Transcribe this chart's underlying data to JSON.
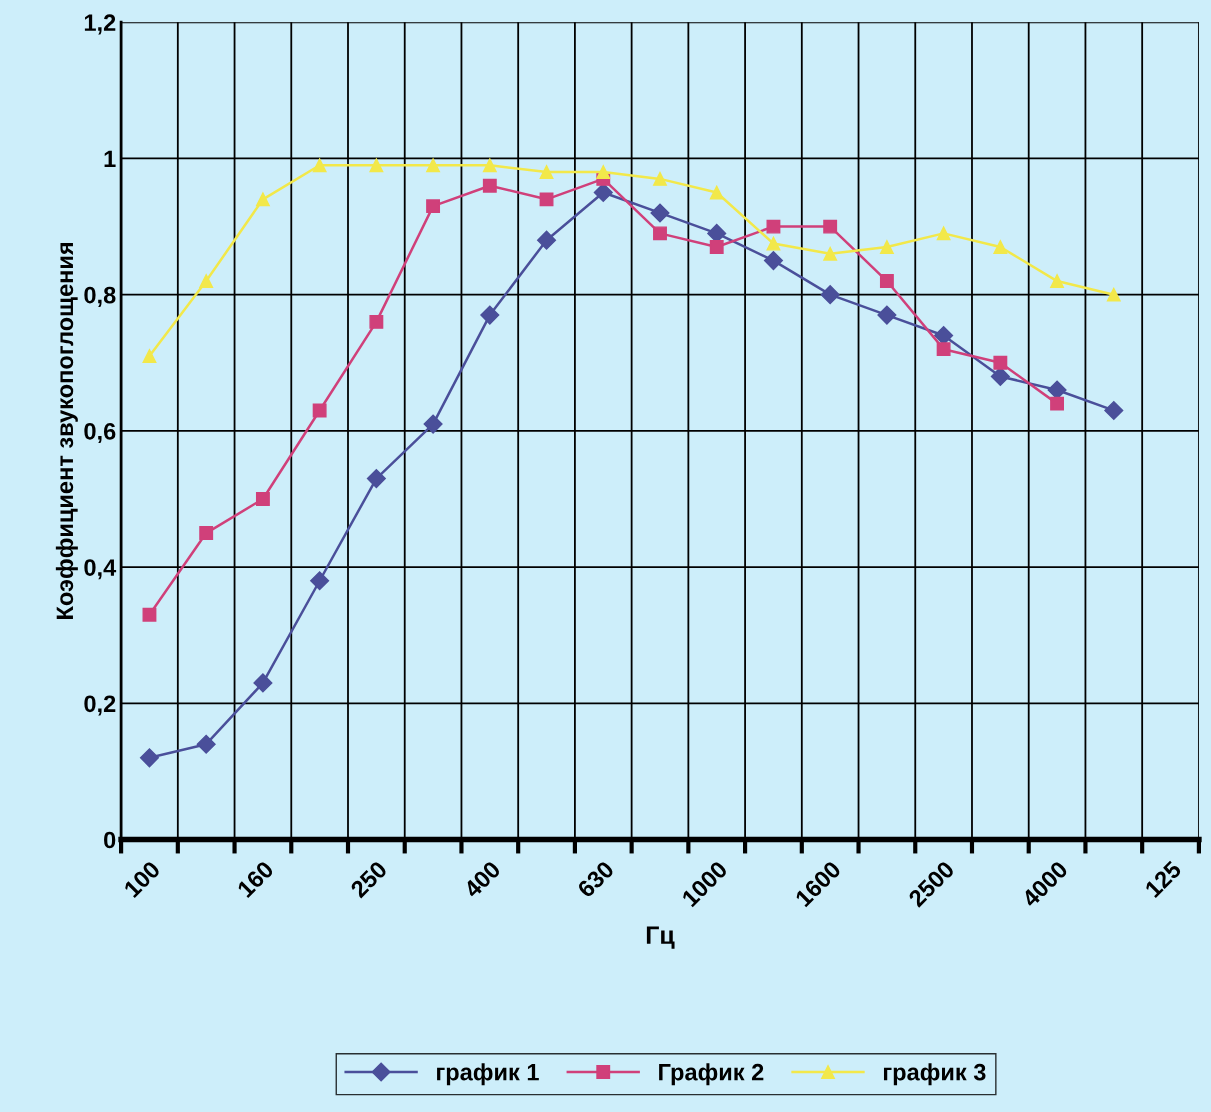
{
  "chart_data": {
    "type": "line",
    "xlabel": "Гц",
    "ylabel": "Коэффициент звукопоглощения",
    "categories": [
      "100",
      null,
      "160",
      null,
      "250",
      null,
      "400",
      null,
      "630",
      null,
      "1000",
      null,
      "1600",
      null,
      "2500",
      null,
      "4000",
      null,
      "125"
    ],
    "series": [
      {
        "name": "график 1",
        "color": "#4a4f9a",
        "marker": "diamond",
        "values": [
          0.12,
          0.14,
          0.23,
          0.38,
          0.53,
          0.61,
          0.77,
          0.88,
          0.95,
          0.92,
          0.89,
          0.85,
          0.8,
          0.77,
          0.74,
          0.68,
          0.66,
          0.63,
          null
        ]
      },
      {
        "name": "График 2",
        "color": "#d0407a",
        "marker": "square",
        "values": [
          0.33,
          0.45,
          0.5,
          0.63,
          0.76,
          0.93,
          0.96,
          0.94,
          0.97,
          0.89,
          0.87,
          0.9,
          0.9,
          0.82,
          0.72,
          0.7,
          0.64,
          null,
          null
        ]
      },
      {
        "name": "график 3",
        "color": "#f2e84a",
        "marker": "triangle",
        "values": [
          0.71,
          0.82,
          0.94,
          0.99,
          0.99,
          0.99,
          0.99,
          0.98,
          0.98,
          0.97,
          0.95,
          0.875,
          0.86,
          0.87,
          0.89,
          0.87,
          0.82,
          0.8,
          null
        ]
      }
    ],
    "ylim": [
      0,
      1.2
    ],
    "yticks": [
      {
        "value": 0,
        "label": "0"
      },
      {
        "value": 0.2,
        "label": "0,2"
      },
      {
        "value": 0.4,
        "label": "0,4"
      },
      {
        "value": 0.6,
        "label": "0,6"
      },
      {
        "value": 0.8,
        "label": "0,8"
      },
      {
        "value": 1,
        "label": "1"
      },
      {
        "value": 1.2,
        "label": "1,2"
      }
    ],
    "grid": true,
    "legend": "bottom",
    "line_style": "solid"
  }
}
